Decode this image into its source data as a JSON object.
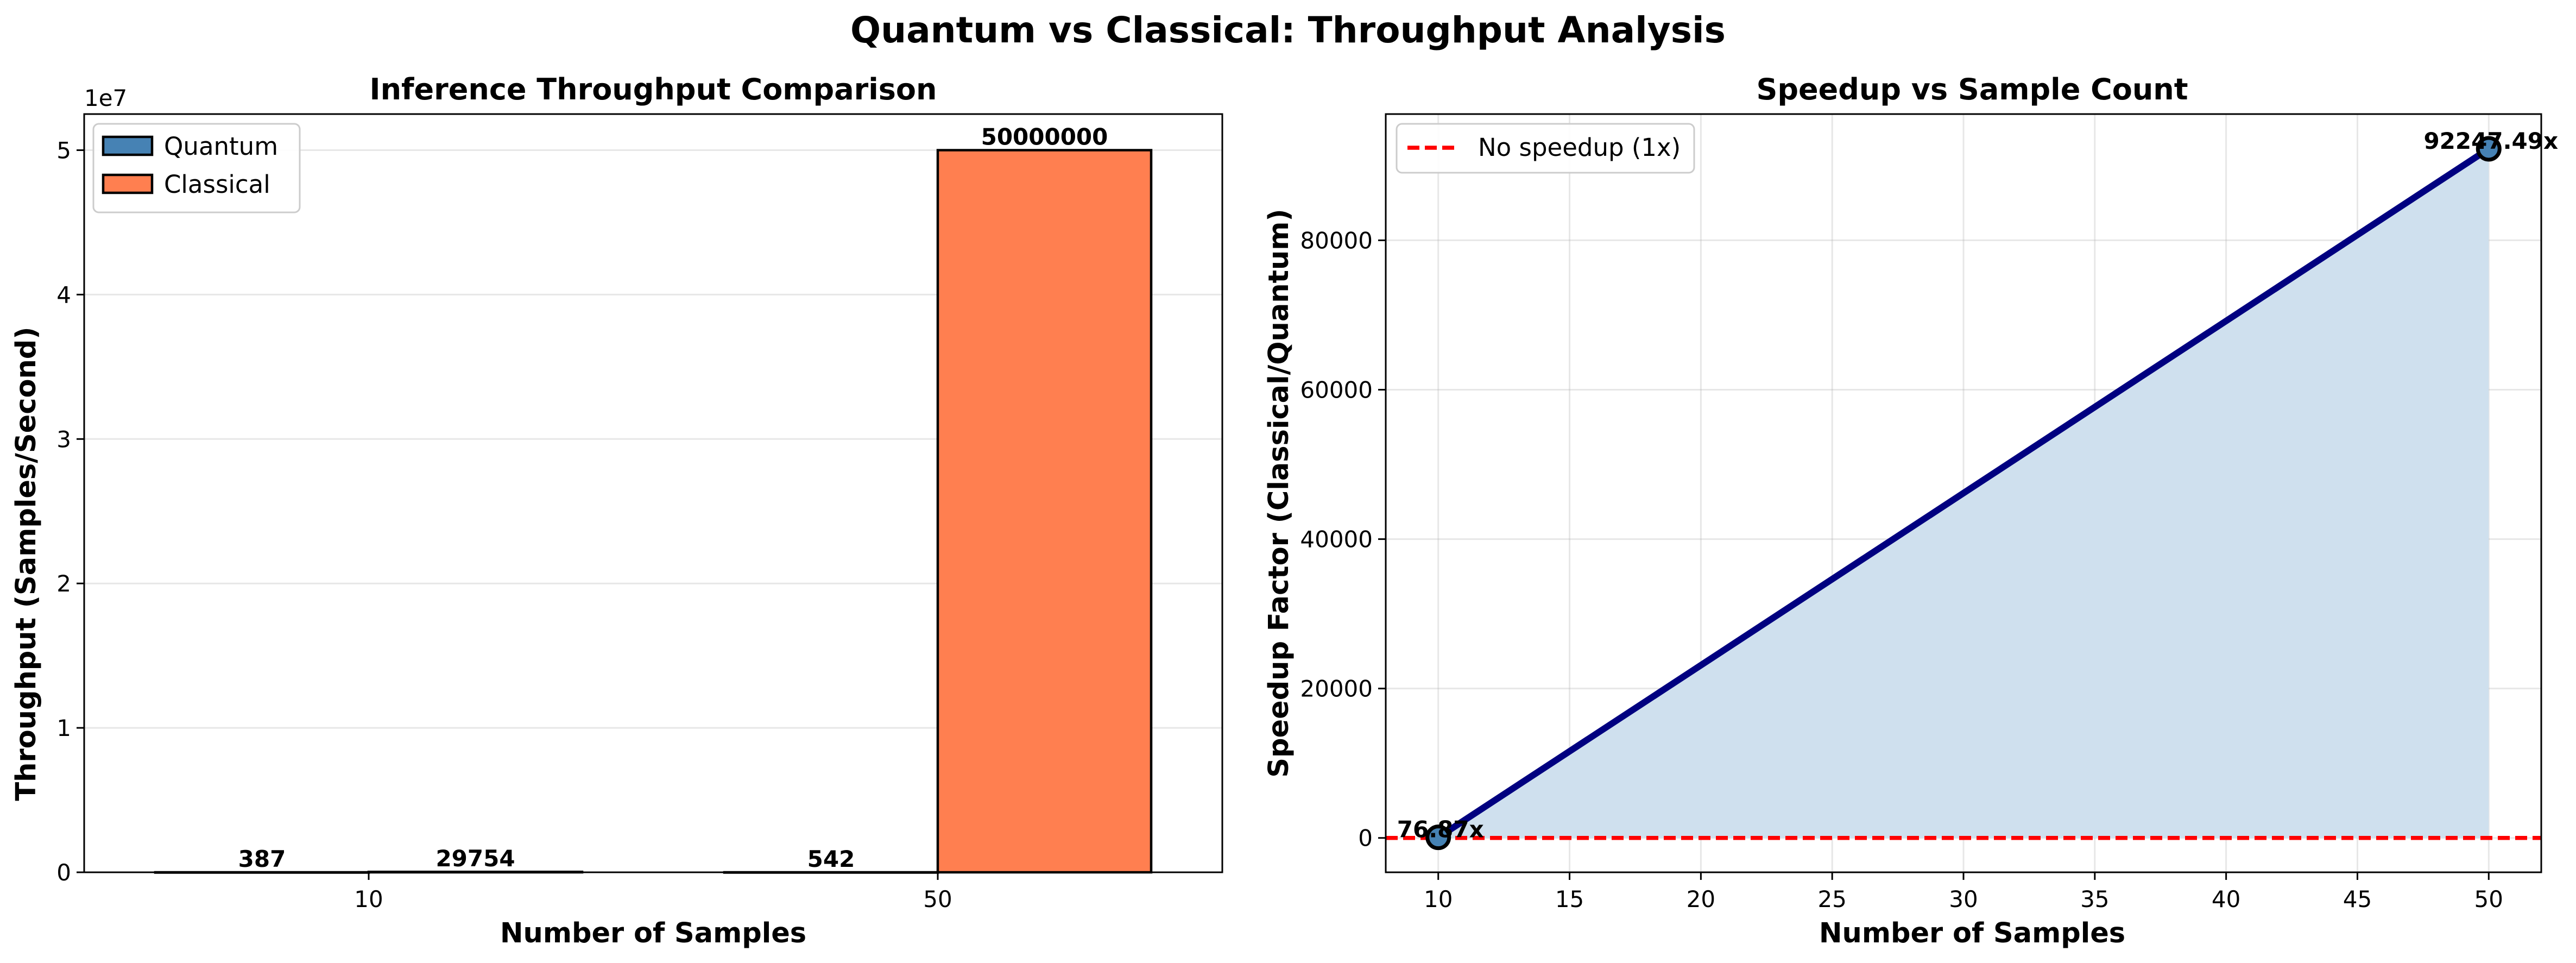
{
  "figure": {
    "title": "Quantum vs Classical: Throughput Analysis"
  },
  "chart_data": [
    {
      "type": "bar",
      "title": "Inference Throughput Comparison",
      "xlabel": "Number of Samples",
      "ylabel": "Throughput (Samples/Second)",
      "y_offset_label": "1e7",
      "categories": [
        "10",
        "50"
      ],
      "series": [
        {
          "name": "Quantum",
          "color": "#4682b4",
          "values": [
            387,
            542
          ],
          "labels": [
            "387",
            "542"
          ]
        },
        {
          "name": "Classical",
          "color": "#ff7f50",
          "values": [
            29754,
            50000000
          ],
          "labels": [
            "29754",
            "50000000"
          ]
        }
      ],
      "ylim": [
        0,
        52500000
      ],
      "y_ticks": [
        0,
        10000000,
        20000000,
        30000000,
        40000000,
        50000000
      ],
      "y_tick_labels": [
        "0",
        "1",
        "2",
        "3",
        "4",
        "5"
      ],
      "grid": "y",
      "legend_position": "top-left"
    },
    {
      "type": "line",
      "title": "Speedup vs Sample Count",
      "xlabel": "Number of Samples",
      "ylabel": "Speedup Factor (Classical/Quantum)",
      "x": [
        10,
        50
      ],
      "y": [
        76.87,
        92247.49
      ],
      "point_labels": [
        "76.87x",
        "92247.49x"
      ],
      "line_color": "#000080",
      "fill_color": "#cfe0ee",
      "xlim": [
        8,
        52
      ],
      "ylim": [
        -4600,
        96900
      ],
      "x_ticks": [
        10,
        15,
        20,
        25,
        30,
        35,
        40,
        45,
        50
      ],
      "x_tick_labels": [
        "10",
        "15",
        "20",
        "25",
        "30",
        "35",
        "40",
        "45",
        "50"
      ],
      "y_ticks": [
        0,
        20000,
        40000,
        60000,
        80000
      ],
      "y_tick_labels": [
        "0",
        "20000",
        "40000",
        "60000",
        "80000"
      ],
      "reference_line": {
        "y": 1,
        "label": "No speedup (1x)",
        "color": "#ff0000"
      },
      "grid": "both",
      "legend_position": "top-left"
    }
  ]
}
